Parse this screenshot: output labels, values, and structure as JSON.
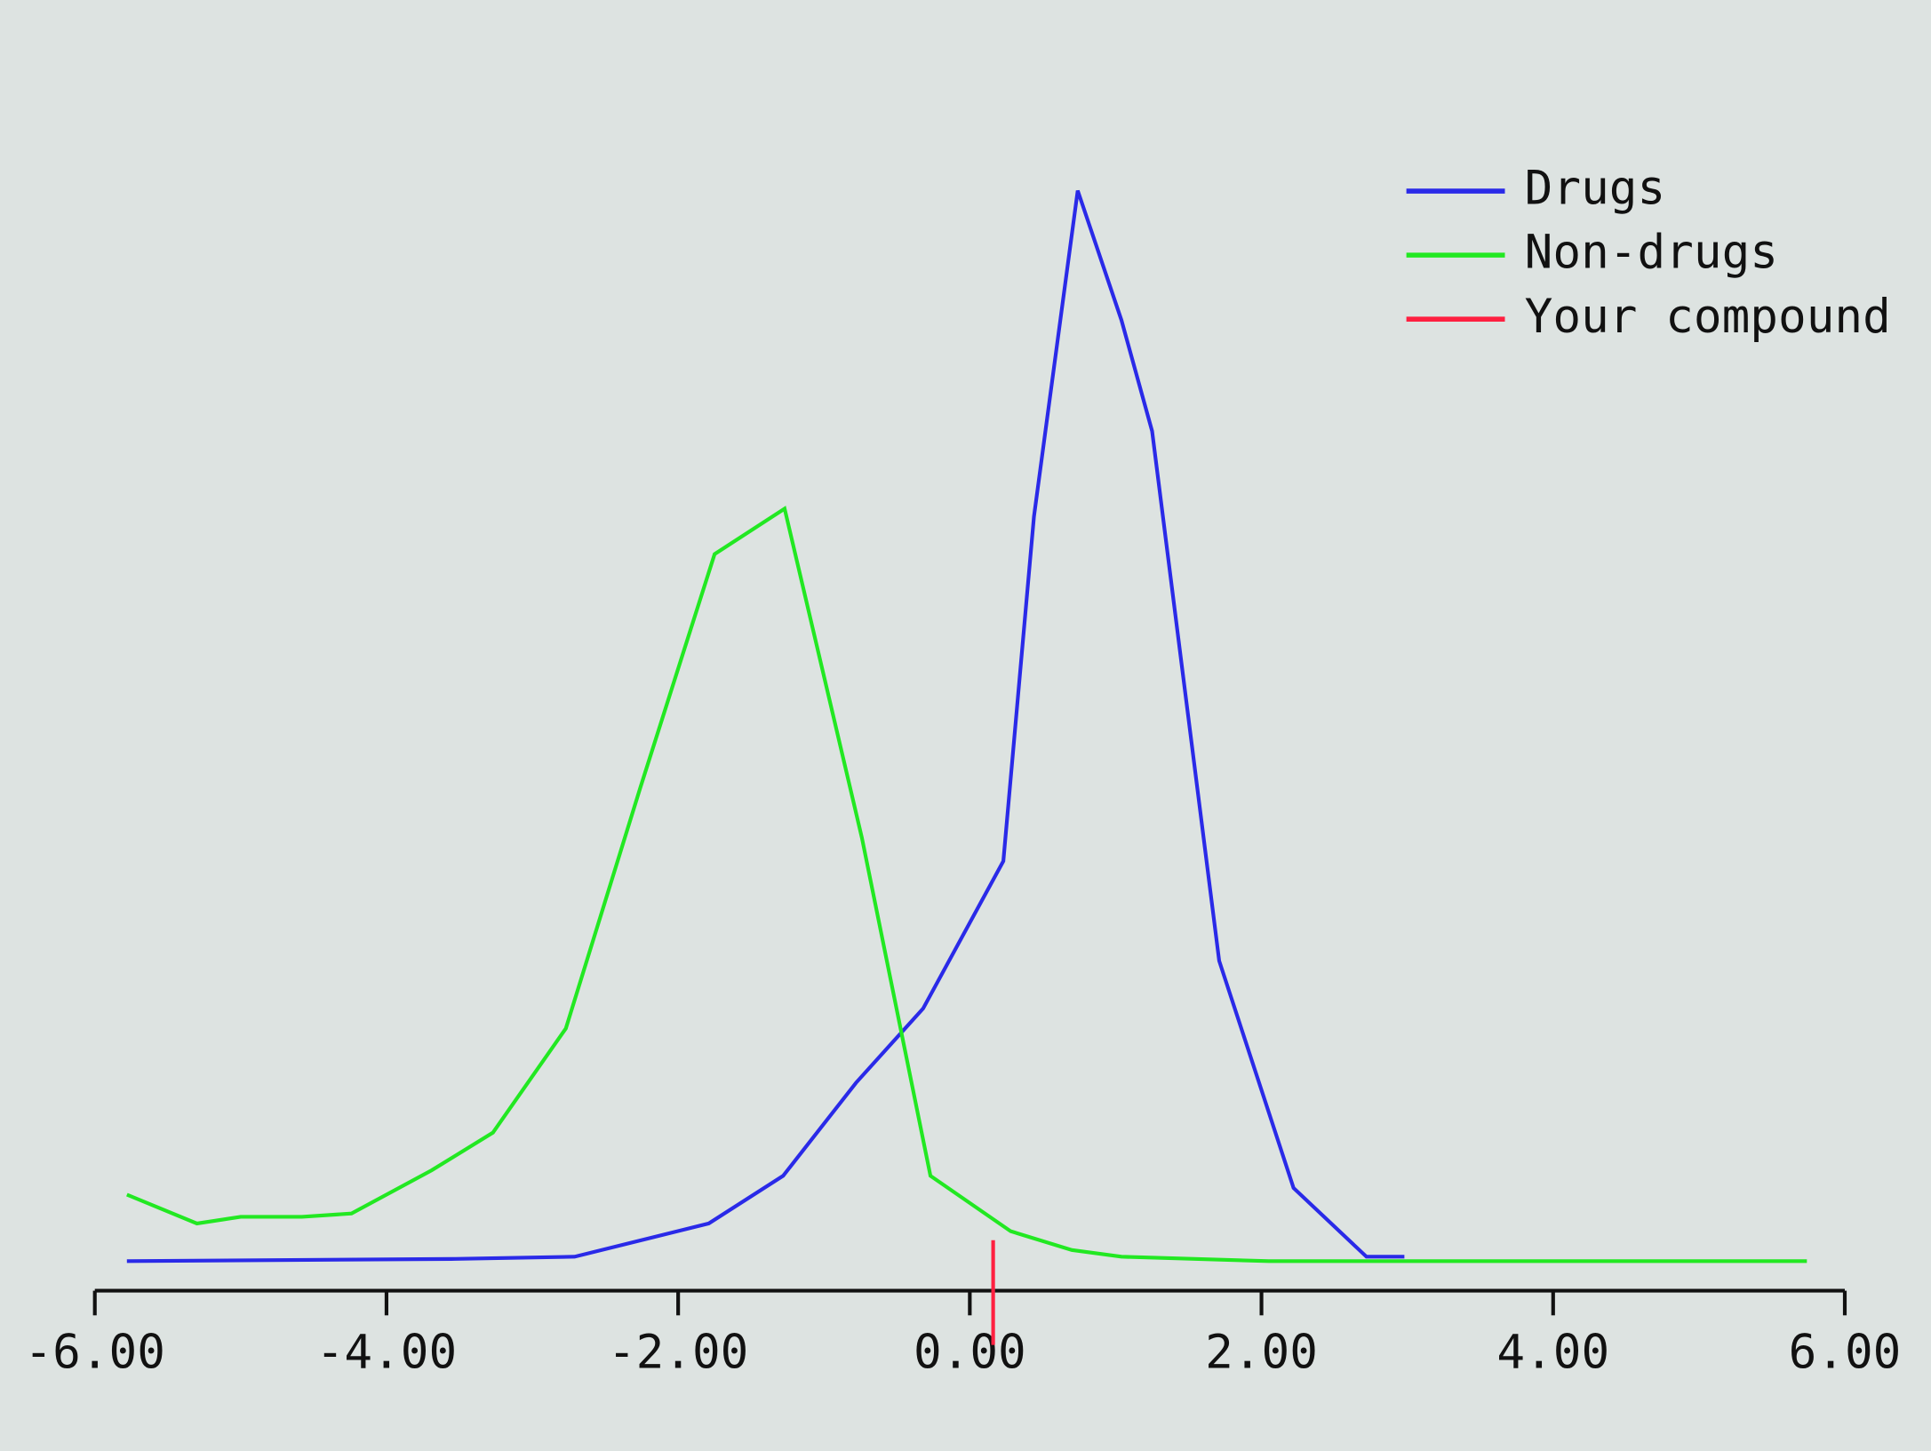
{
  "chart_data": {
    "type": "line",
    "xlim": [
      -6,
      6
    ],
    "xticks": [
      {
        "value": -6,
        "label": "-6.00"
      },
      {
        "value": -4,
        "label": "-4.00"
      },
      {
        "value": -2,
        "label": "-2.00"
      },
      {
        "value": 0,
        "label": "0.00"
      },
      {
        "value": 2,
        "label": "2.00"
      },
      {
        "value": 4,
        "label": "4.00"
      },
      {
        "value": 6,
        "label": "6.00"
      }
    ],
    "ylim": [
      0,
      100
    ],
    "series": [
      {
        "name": "Drugs",
        "color": "#2a2ae8",
        "x": [
          -5.78,
          -3.53,
          -2.71,
          -1.79,
          -1.28,
          -0.78,
          -0.32,
          0.23,
          0.44,
          0.74,
          1.04,
          1.25,
          1.71,
          2.22,
          2.72,
          2.98
        ],
        "values": [
          0,
          0.2,
          0.4,
          3.4,
          7.7,
          16.1,
          22.8,
          36.1,
          67.2,
          96.6,
          84.9,
          74.9,
          27.1,
          6.6,
          0.4,
          0.4
        ]
      },
      {
        "name": "Non-drugs",
        "color": "#22e822",
        "x": [
          -5.78,
          -5.3,
          -5.0,
          -4.58,
          -4.24,
          -3.69,
          -3.27,
          -2.77,
          -2.26,
          -1.75,
          -1.27,
          -0.74,
          -0.27,
          0.28,
          0.7,
          1.04,
          2.05,
          5.74
        ],
        "values": [
          6.0,
          3.4,
          4.0,
          4.0,
          4.3,
          8.2,
          11.6,
          21.0,
          42.7,
          63.8,
          67.9,
          38.2,
          7.7,
          2.7,
          1.0,
          0.4,
          0,
          0
        ]
      }
    ],
    "marker": {
      "name": "Your compound",
      "color": "#ff2040",
      "x": 0.16
    },
    "legend": "top-right"
  }
}
